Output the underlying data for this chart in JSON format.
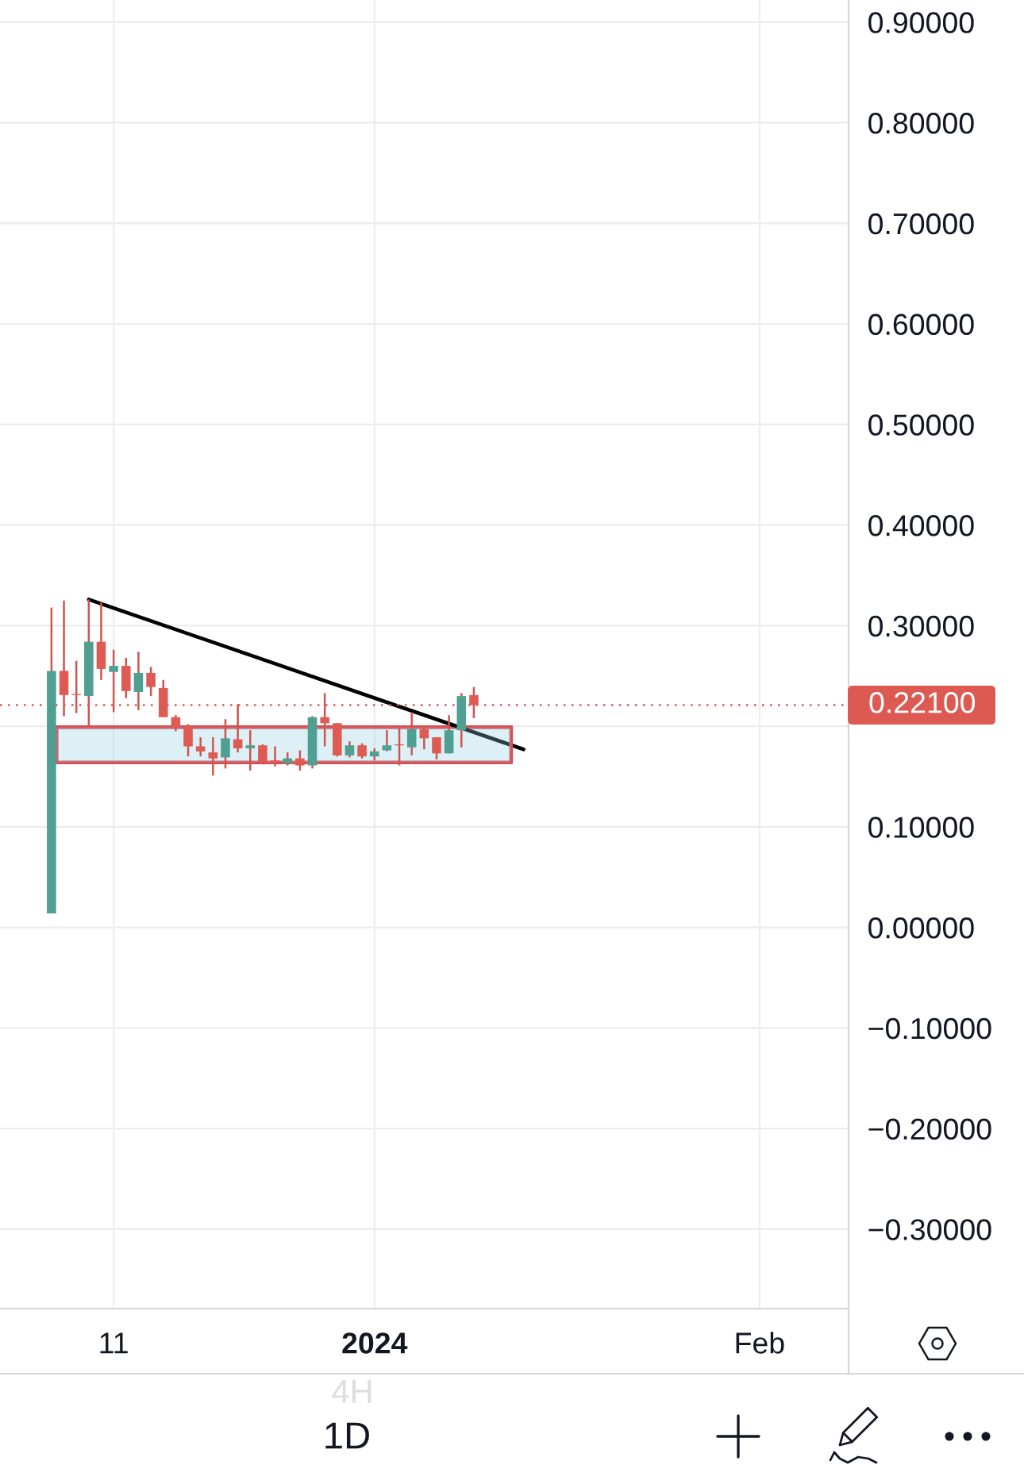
{
  "chart_data": {
    "type": "candlestick",
    "x": [
      "2023-12-06",
      "2023-12-07",
      "2023-12-08",
      "2023-12-09",
      "2023-12-10",
      "2023-12-11",
      "2023-12-12",
      "2023-12-13",
      "2023-12-14",
      "2023-12-15",
      "2023-12-16",
      "2023-12-17",
      "2023-12-18",
      "2023-12-19",
      "2023-12-20",
      "2023-12-21",
      "2023-12-22",
      "2023-12-23",
      "2023-12-24",
      "2023-12-25",
      "2023-12-26",
      "2023-12-27",
      "2023-12-28",
      "2023-12-29",
      "2023-12-30",
      "2023-12-31",
      "2024-01-01",
      "2024-01-02",
      "2024-01-03",
      "2024-01-04",
      "2024-01-05",
      "2024-01-06",
      "2024-01-07",
      "2024-01-08",
      "2024-01-09"
    ],
    "ohlc": [
      [
        0.014,
        0.318,
        0.014,
        0.255
      ],
      [
        0.255,
        0.325,
        0.21,
        0.231
      ],
      [
        0.232,
        0.265,
        0.213,
        0.231
      ],
      [
        0.23,
        0.326,
        0.201,
        0.284
      ],
      [
        0.284,
        0.323,
        0.246,
        0.257
      ],
      [
        0.254,
        0.276,
        0.214,
        0.26
      ],
      [
        0.26,
        0.268,
        0.228,
        0.235
      ],
      [
        0.234,
        0.274,
        0.216,
        0.253
      ],
      [
        0.253,
        0.259,
        0.23,
        0.239
      ],
      [
        0.238,
        0.246,
        0.209,
        0.209
      ],
      [
        0.209,
        0.211,
        0.195,
        0.199
      ],
      [
        0.2,
        0.202,
        0.17,
        0.18
      ],
      [
        0.18,
        0.189,
        0.17,
        0.175
      ],
      [
        0.174,
        0.189,
        0.151,
        0.168
      ],
      [
        0.169,
        0.207,
        0.158,
        0.188
      ],
      [
        0.187,
        0.222,
        0.174,
        0.178
      ],
      [
        0.178,
        0.196,
        0.156,
        0.181
      ],
      [
        0.181,
        0.182,
        0.162,
        0.164
      ],
      [
        0.166,
        0.18,
        0.16,
        0.164
      ],
      [
        0.163,
        0.174,
        0.161,
        0.168
      ],
      [
        0.168,
        0.176,
        0.156,
        0.161
      ],
      [
        0.161,
        0.21,
        0.158,
        0.209
      ],
      [
        0.209,
        0.233,
        0.18,
        0.203
      ],
      [
        0.203,
        0.203,
        0.17,
        0.171
      ],
      [
        0.171,
        0.185,
        0.169,
        0.181
      ],
      [
        0.181,
        0.183,
        0.168,
        0.17
      ],
      [
        0.17,
        0.178,
        0.166,
        0.175
      ],
      [
        0.176,
        0.196,
        0.175,
        0.181
      ],
      [
        0.182,
        0.199,
        0.161,
        0.181
      ],
      [
        0.179,
        0.214,
        0.171,
        0.197
      ],
      [
        0.197,
        0.199,
        0.177,
        0.188
      ],
      [
        0.189,
        0.189,
        0.167,
        0.173
      ],
      [
        0.173,
        0.211,
        0.173,
        0.196
      ],
      [
        0.196,
        0.233,
        0.179,
        0.23
      ],
      [
        0.231,
        0.239,
        0.208,
        0.221
      ]
    ],
    "colors": [
      "#4f9f93",
      "#dd5b53",
      "#dd5b53",
      "#4f9f93",
      "#dd5b53",
      "#4f9f93",
      "#dd5b53",
      "#4f9f93",
      "#dd5b53",
      "#dd5b53",
      "#dd5b53",
      "#dd5b53",
      "#dd5b53",
      "#dd5b53",
      "#4f9f93",
      "#dd5b53",
      "#4f9f93",
      "#dd5b53",
      "#dd5b53",
      "#4f9f93",
      "#dd5b53",
      "#4f9f93",
      "#dd5b53",
      "#dd5b53",
      "#4f9f93",
      "#dd5b53",
      "#4f9f93",
      "#4f9f93",
      "#dd5b53",
      "#4f9f93",
      "#dd5b53",
      "#dd5b53",
      "#4f9f93",
      "#4f9f93",
      "#dd5b53"
    ],
    "color": "#d05450",
    "series": [
      {
        "type": "line",
        "x": [
          "2023-12-06T10:00",
          "2024-01-12"
        ],
        "values": [
          null,
          null
        ],
        "lower": [
          0.164,
          0.164
        ],
        "upper": [
          0.199,
          0.199
        ],
        "color": "#ddf0f6"
      },
      {
        "type": "line",
        "x": [
          "2023-12-06T10:00",
          "2024-01-12"
        ],
        "values": [
          0.199,
          0.199
        ],
        "color": "#dc4a4f"
      },
      {
        "type": "line",
        "x": [
          "2023-12-06T10:00",
          "2024-01-12"
        ],
        "values": [
          0.164,
          0.164
        ],
        "color": "#dc4a4f"
      },
      {
        "type": "line",
        "x": [
          "2023-12-09",
          "2024-01-13"
        ],
        "values": [
          0.326,
          0.177
        ],
        "color": "#000000"
      }
    ],
    "ref_lines": [
      {
        "axis": "y",
        "value": 0.221,
        "label": "0.22100",
        "color": "#dd5a52",
        "line_style": "dotted"
      }
    ],
    "xlim": [
      "2023-12-01T20:30",
      "2024-02-08T04:00"
    ],
    "xticks": [
      {
        "value": "2023-12-11",
        "label": "11"
      },
      {
        "value": "2024-01-01",
        "label": "2024"
      },
      {
        "value": "2024-02-01",
        "label": "Feb"
      }
    ],
    "ylim": [
      -0.379,
      0.922
    ],
    "yticks": [
      {
        "value": 0.9,
        "label": "0.90000"
      },
      {
        "value": 0.8,
        "label": "0.80000"
      },
      {
        "value": 0.7,
        "label": "0.70000"
      },
      {
        "value": 0.6,
        "label": "0.60000"
      },
      {
        "value": 0.5,
        "label": "0.50000"
      },
      {
        "value": 0.4,
        "label": "0.40000"
      },
      {
        "value": 0.3,
        "label": "0.30000"
      },
      {
        "value": 0.2,
        "label": null
      },
      {
        "value": 0.1,
        "label": "0.10000"
      },
      {
        "value": 0.0,
        "label": "0.00000"
      },
      {
        "value": -0.1,
        "label": "−0.10000"
      },
      {
        "value": -0.2,
        "label": "−0.20000"
      },
      {
        "value": -0.3,
        "label": "−0.30000"
      }
    ],
    "grid": true,
    "annotations": [
      "1D",
      "4H"
    ]
  }
}
